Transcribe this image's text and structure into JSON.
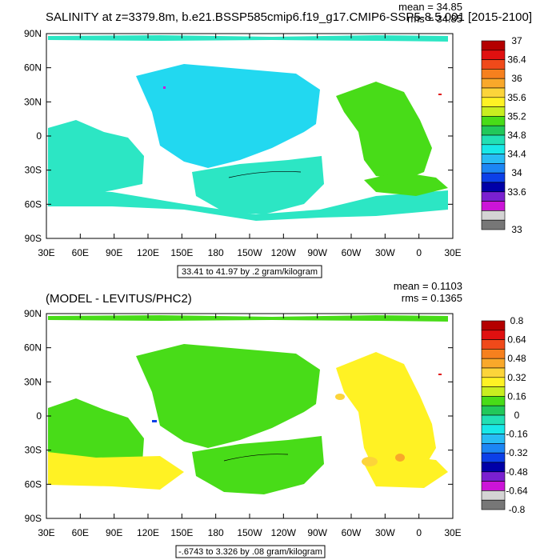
{
  "chart_data": [
    {
      "type": "heatmap",
      "title": "SALINITY at z=3379.8m, b.e21.BSSP585cmip6.f19_g17.CMIP6-SSP5-8.5.001 [2015-2100]",
      "stats": {
        "mean": "mean = 34.85",
        "rms": "rms = 34.85"
      },
      "contour_info": "33.41 to 41.97 by .2 gram/kilogram",
      "x_ticks": [
        "30E",
        "60E",
        "90E",
        "120E",
        "150E",
        "180",
        "150W",
        "120W",
        "90W",
        "60W",
        "30W",
        "0",
        "30E"
      ],
      "y_ticks": [
        "90N",
        "60N",
        "30N",
        "0",
        "30S",
        "60S",
        "90S"
      ],
      "colorbar": {
        "labels": [
          "37",
          "36.4",
          "36",
          "35.6",
          "35.2",
          "34.8",
          "34.4",
          "34",
          "33.6",
          "33"
        ],
        "colors": [
          "#b40000",
          "#e01010",
          "#f04a1a",
          "#f6801e",
          "#f9a82a",
          "#fcd43a",
          "#fff224",
          "#c8ee20",
          "#48dc18",
          "#22c85a",
          "#22e0b4",
          "#18e8e8",
          "#28bcf4",
          "#1c86f4",
          "#0c40e8",
          "#0000a8",
          "#7a20d0",
          "#cc14d8",
          "#d4d4d4",
          "#777777"
        ]
      }
    },
    {
      "type": "heatmap",
      "title": "(MODEL - LEVITUS/PHC2)",
      "stats": {
        "mean": "mean = 0.1103",
        "rms": "rms = 0.1365"
      },
      "contour_info": "-.6743 to 3.326 by .08 gram/kilogram",
      "x_ticks": [
        "30E",
        "60E",
        "90E",
        "120E",
        "150E",
        "180",
        "150W",
        "120W",
        "90W",
        "60W",
        "30W",
        "0",
        "30E"
      ],
      "y_ticks": [
        "90N",
        "60N",
        "30N",
        "0",
        "30S",
        "60S",
        "90S"
      ],
      "colorbar": {
        "labels": [
          "0.8",
          "0.64",
          "0.48",
          "0.32",
          "0.16",
          "0",
          "-0.16",
          "-0.32",
          "-0.48",
          "-0.64",
          "-0.8"
        ],
        "colors": [
          "#b40000",
          "#e01010",
          "#f04a1a",
          "#f6801e",
          "#f9a82a",
          "#fcd43a",
          "#fff224",
          "#c8ee20",
          "#48dc18",
          "#22c85a",
          "#22e0b4",
          "#18e8e8",
          "#28bcf4",
          "#1c86f4",
          "#0c40e8",
          "#0000a8",
          "#7a20d0",
          "#cc14d8",
          "#d4d4d4",
          "#777777"
        ]
      }
    }
  ]
}
